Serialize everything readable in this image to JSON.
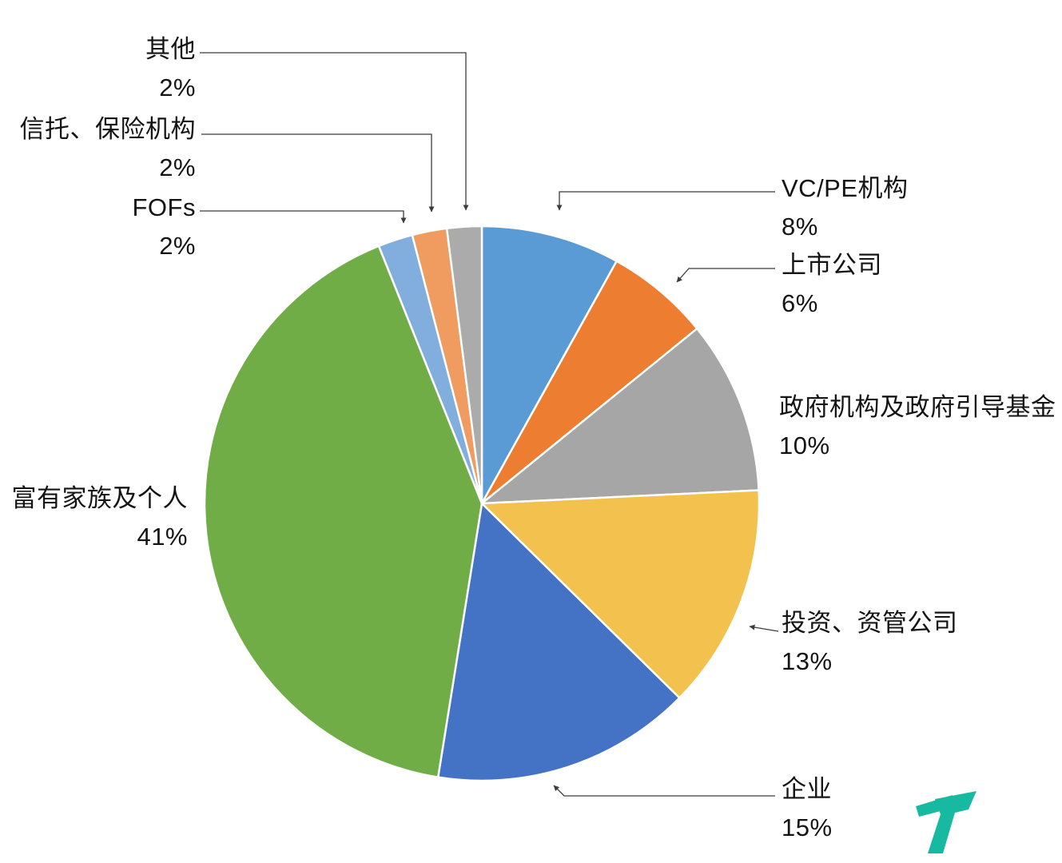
{
  "figure": {
    "background": "#ffffff",
    "annotation_style": "leader-lines-with-arrows",
    "brand_logo": {
      "name": "teal-brand-mark",
      "color": "#17B9A0"
    }
  },
  "chart_data": {
    "type": "pie",
    "title": "",
    "legend_position": "none",
    "start_angle_deg": 0,
    "direction": "clockwise",
    "stroke_color": "#ffffff",
    "series": [
      {
        "id": "vc-pe",
        "label": "VC/PE机构",
        "value": 8,
        "pct_label": "8%",
        "color": "#5B9BD5"
      },
      {
        "id": "listed-company",
        "label": "上市公司",
        "value": 6,
        "pct_label": "6%",
        "color": "#ED7D31"
      },
      {
        "id": "government",
        "label": "政府机构及政府引导基金",
        "value": 10,
        "pct_label": "10%",
        "color": "#A6A6A6"
      },
      {
        "id": "investment-mgmt",
        "label": "投资、资管公司",
        "value": 13,
        "pct_label": "13%",
        "color": "#F2C14E"
      },
      {
        "id": "enterprise",
        "label": "企业",
        "value": 15,
        "pct_label": "15%",
        "color": "#4472C4"
      },
      {
        "id": "wealthy-families",
        "label": "富有家族及个人",
        "value": 41,
        "pct_label": "41%",
        "color": "#70AD47"
      },
      {
        "id": "fofs",
        "label": "FOFs",
        "value": 2,
        "pct_label": "2%",
        "color": "#82AEDE"
      },
      {
        "id": "trust-insurance",
        "label": "信托、保险机构",
        "value": 2,
        "pct_label": "2%",
        "color": "#F09B5F"
      },
      {
        "id": "other",
        "label": "其他",
        "value": 2,
        "pct_label": "2%",
        "color": "#ABABAB"
      }
    ]
  }
}
